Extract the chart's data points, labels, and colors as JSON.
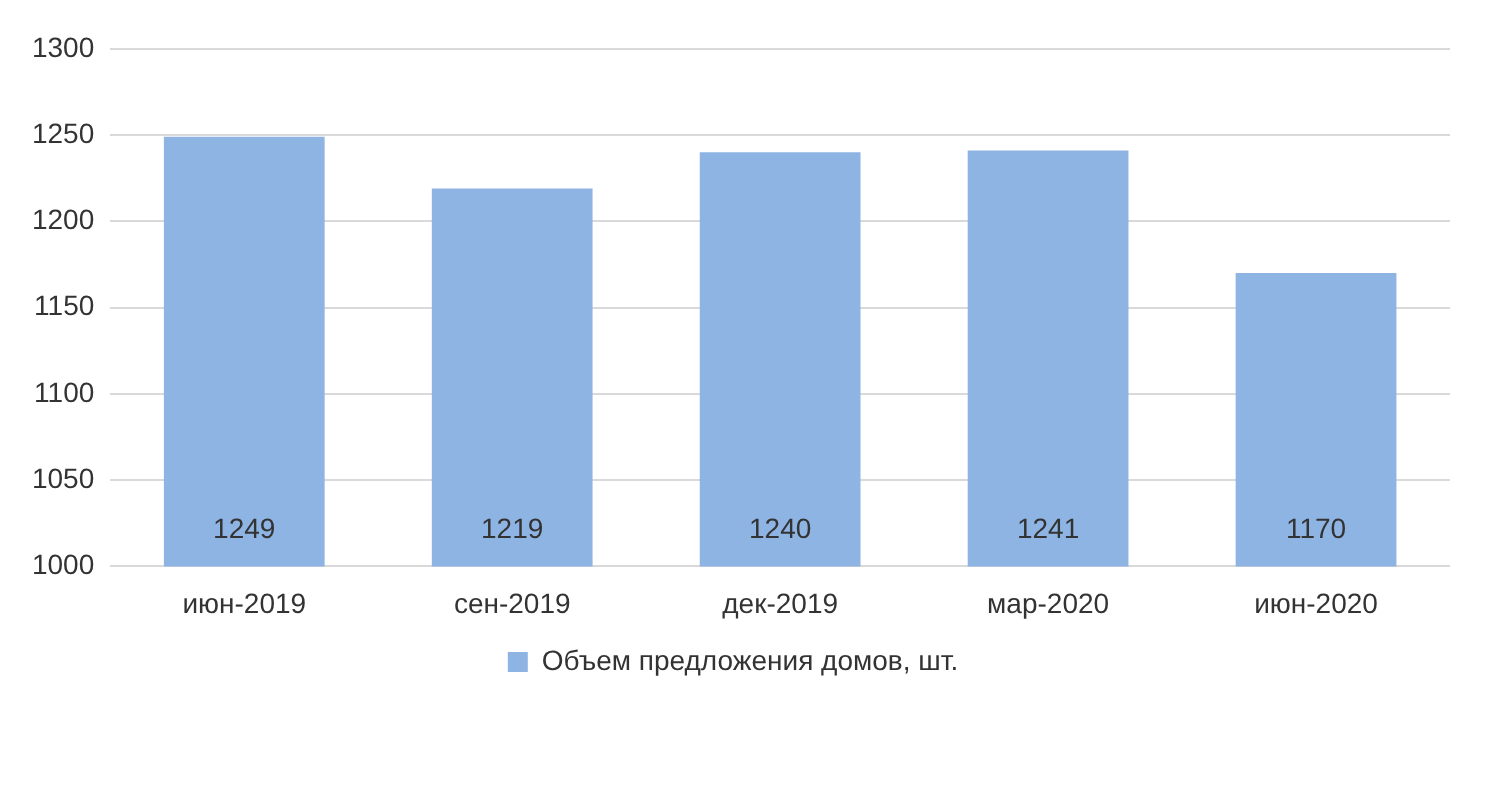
{
  "chart_data": {
    "type": "bar",
    "categories": [
      "июн-2019",
      "сен-2019",
      "дек-2019",
      "мар-2020",
      "июн-2020"
    ],
    "series": [
      {
        "name": "Объем предложения домов, шт.",
        "color": "#8eb4e3",
        "values": [
          1249,
          1219,
          1240,
          1241,
          1170
        ]
      }
    ],
    "ylim": [
      1000,
      1300
    ],
    "yticks": [
      1000,
      1050,
      1100,
      1150,
      1200,
      1250,
      1300
    ],
    "grid": "y",
    "legend": "bottom",
    "data_labels": true
  }
}
